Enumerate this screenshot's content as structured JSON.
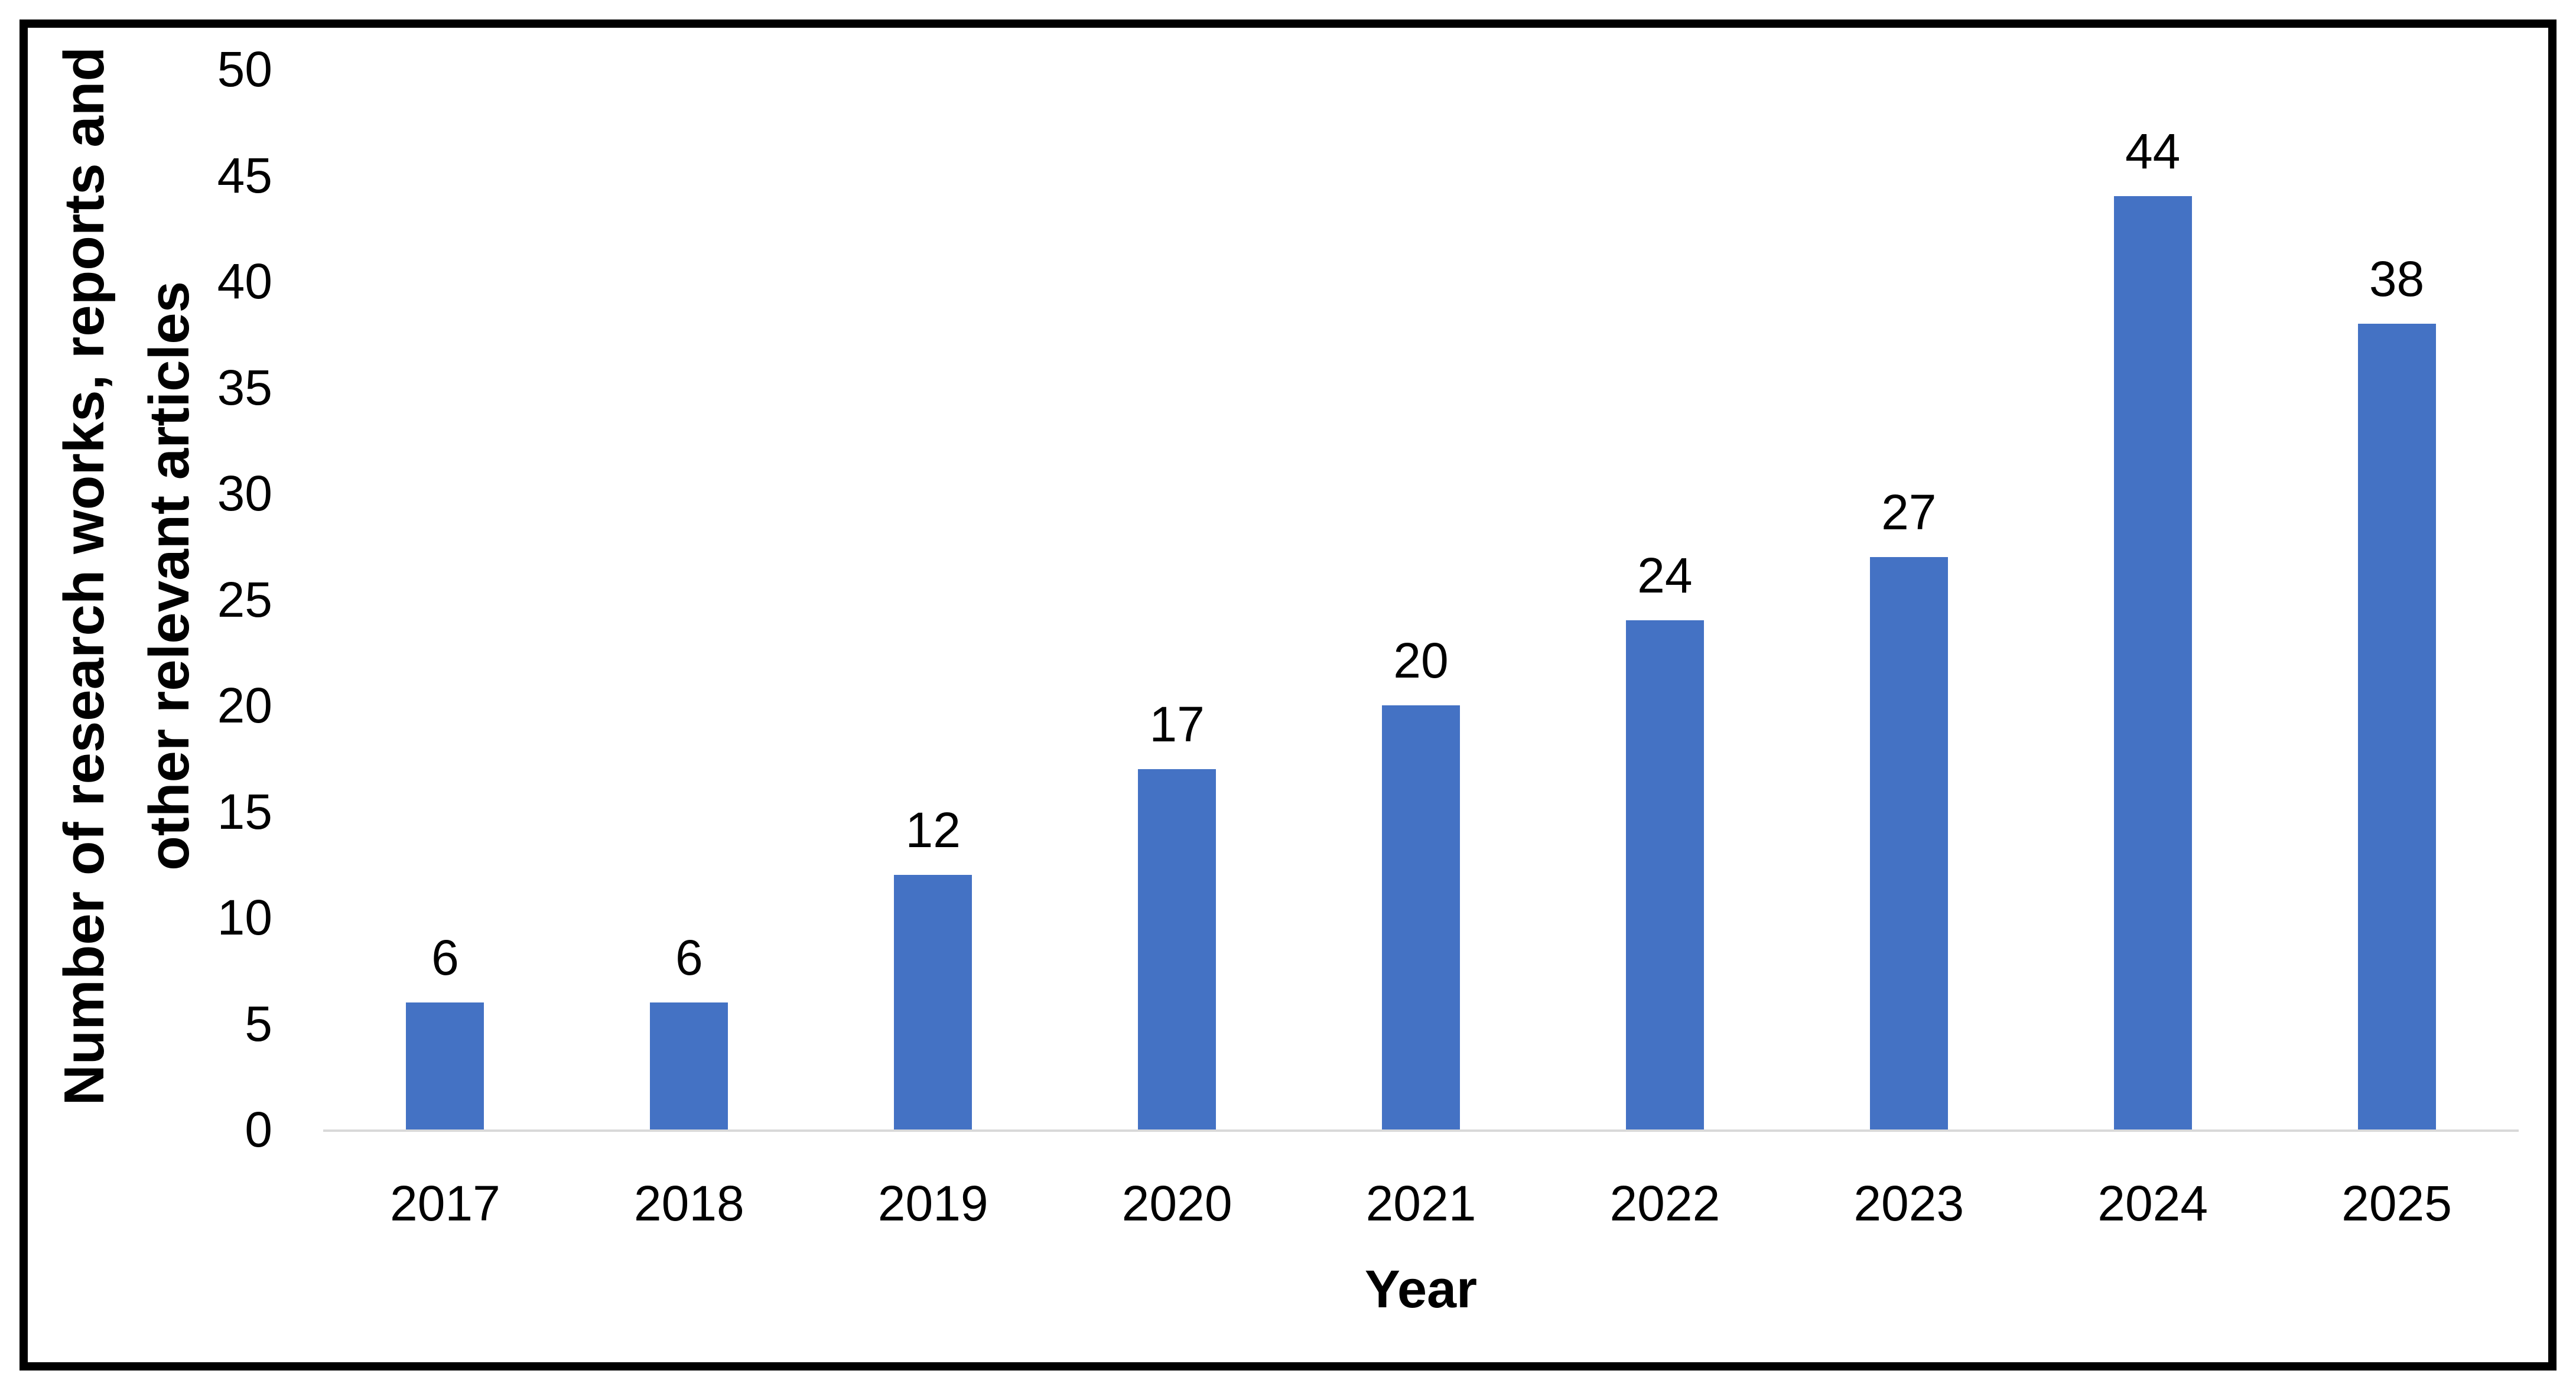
{
  "chart_data": {
    "type": "bar",
    "title": "",
    "categories": [
      "2017",
      "2018",
      "2019",
      "2020",
      "2021",
      "2022",
      "2023",
      "2024",
      "2025"
    ],
    "values": [
      6,
      6,
      12,
      17,
      20,
      24,
      27,
      44,
      38
    ],
    "xlabel": "Year",
    "ylabel": "Number of research works, reports and other relevant articles",
    "ylabel_lines": [
      "Number of research works, reports and",
      "other relevant articles"
    ],
    "yticks": [
      0,
      5,
      10,
      15,
      20,
      25,
      30,
      35,
      40,
      45,
      50
    ],
    "ylim": [
      0,
      50
    ],
    "grid": false,
    "legend": false,
    "data_labels": true,
    "bar_color": "#4472C4",
    "baseline_color": "#D9D9D9",
    "frame_border_color": "#000000",
    "text_color": "#000000"
  }
}
